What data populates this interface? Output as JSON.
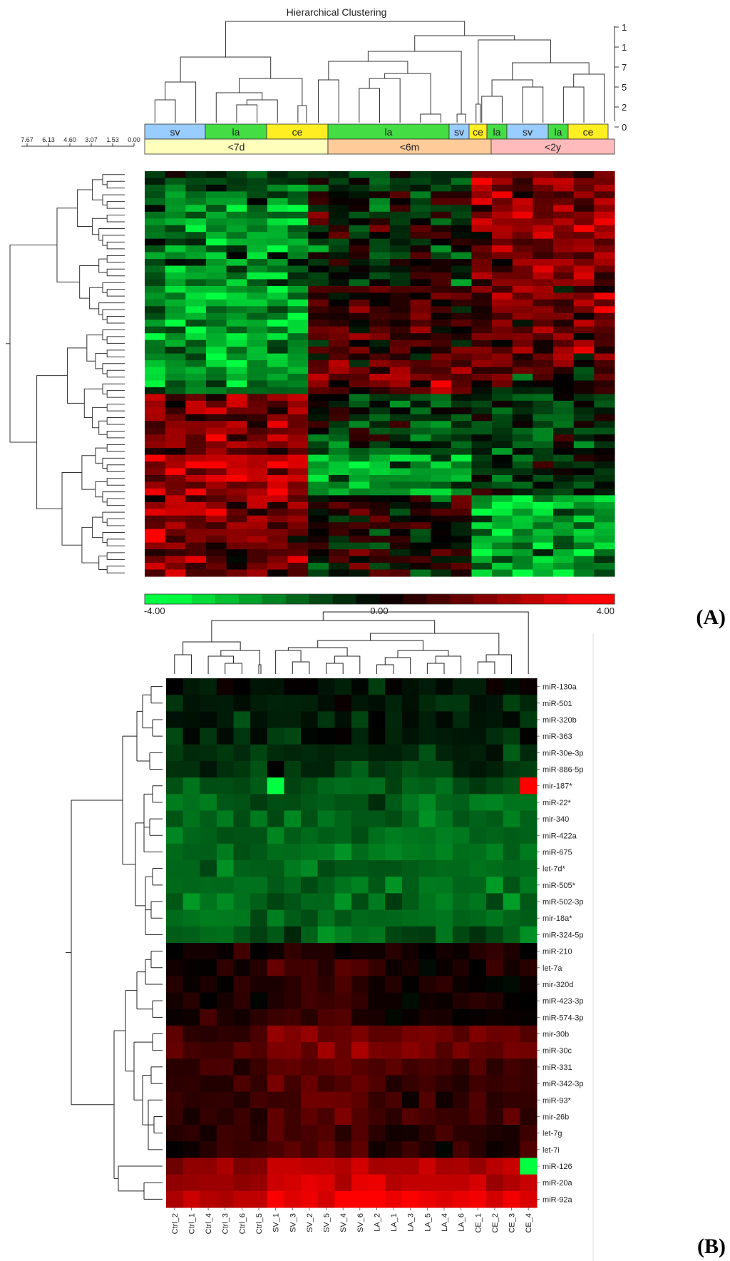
{
  "panel_a": {
    "title": "Hierarchical Clustering",
    "panel_label": "(A)",
    "scale_ticks_left": [
      "7.67",
      "6.13",
      "4.60",
      "3.07",
      "1.53",
      "0.00"
    ],
    "scale_ticks_right": [
      "1",
      "1",
      "7",
      "5",
      "2",
      "0"
    ],
    "tissue_groups": [
      {
        "label": "sv",
        "color": "#99ccff"
      },
      {
        "label": "la",
        "color": "#44dd44"
      },
      {
        "label": "ce",
        "color": "#ffee22"
      },
      {
        "label": "la",
        "color": "#44dd44"
      },
      {
        "label": "sv",
        "color": "#99ccff"
      },
      {
        "label": "ce",
        "color": "#ffee22"
      },
      {
        "label": "la",
        "color": "#44dd44"
      },
      {
        "label": "sv",
        "color": "#99ccff"
      },
      {
        "label": "la",
        "color": "#44dd44"
      },
      {
        "label": "ce",
        "color": "#ffee22"
      }
    ],
    "age_groups": [
      {
        "label": "<7d",
        "color": "#ffffbb"
      },
      {
        "label": "<6m",
        "color": "#ffcc99"
      },
      {
        "label": "<2y",
        "color": "#ffbbbb"
      }
    ],
    "colorbar": {
      "min_label": "-4.00",
      "mid_label": "0.00",
      "max_label": "4.00"
    }
  },
  "panel_b": {
    "panel_label": "(B)"
  },
  "chart_data": [
    {
      "type": "heatmap",
      "title": "Hierarchical Clustering",
      "columns": 23,
      "rows": 60,
      "color_scale": {
        "min": -4.0,
        "mid": 0.0,
        "max": 4.0,
        "low_color": "#00ff44",
        "mid_color": "#000000",
        "high_color": "#ff0000"
      },
      "column_groups": [
        "sv",
        "la",
        "ce",
        "la",
        "sv",
        "ce",
        "la",
        "sv",
        "la",
        "ce"
      ],
      "age_groups": [
        "<7d",
        "<6m",
        "<2y"
      ]
    },
    {
      "type": "heatmap",
      "columns": [
        "Ctrl_2",
        "Ctrl_1",
        "Ctrl_4",
        "Ctrl_3",
        "Ctrl_6",
        "Ctrl_5",
        "SV_1",
        "SV_3",
        "SV_2",
        "SV_5",
        "SV_4",
        "SV_6",
        "LA_2",
        "LA_1",
        "LA_3",
        "LA_5",
        "LA_4",
        "LA_6",
        "CE_1",
        "CE_2",
        "CE_3",
        "CE_4"
      ],
      "rows": [
        "miR-130a",
        "miR-501",
        "miR-320b",
        "miR-363",
        "miR-30e-3p",
        "miR-886-5p",
        "mir-187*",
        "miR-22*",
        "mir-340",
        "miR-422a",
        "miR-675",
        "let-7d*",
        "miR-505*",
        "miR-502-3p",
        "mir-18a*",
        "miR-324-5p",
        "miR-210",
        "let-7a",
        "mir-320d",
        "miR-423-3p",
        "miR-574-3p",
        "mir-30b",
        "miR-30c",
        "miR-331",
        "miR-342-3p",
        "miR-93*",
        "mir-26b",
        "let-7g",
        "let-7i",
        "miR-126",
        "miR-20a",
        "miR-92a"
      ],
      "row_levels": [
        -0.3,
        -0.3,
        -0.35,
        -0.4,
        -0.6,
        -0.7,
        -1.2,
        -1.3,
        -1.4,
        -1.4,
        -1.5,
        -1.4,
        -1.5,
        -1.5,
        -1.4,
        -1.3,
        0.2,
        0.4,
        0.2,
        0.3,
        0.3,
        1.5,
        1.5,
        0.9,
        0.9,
        0.7,
        0.8,
        0.6,
        0.6,
        2.4,
        2.6,
        3.0
      ],
      "outliers": [
        {
          "row": "mir-187*",
          "column": "SV_1",
          "value": -4.0
        },
        {
          "row": "mir-187*",
          "column": "CE_4",
          "value": 3.5
        },
        {
          "row": "miR-126",
          "column": "CE_4",
          "value": -4.0
        }
      ]
    }
  ]
}
